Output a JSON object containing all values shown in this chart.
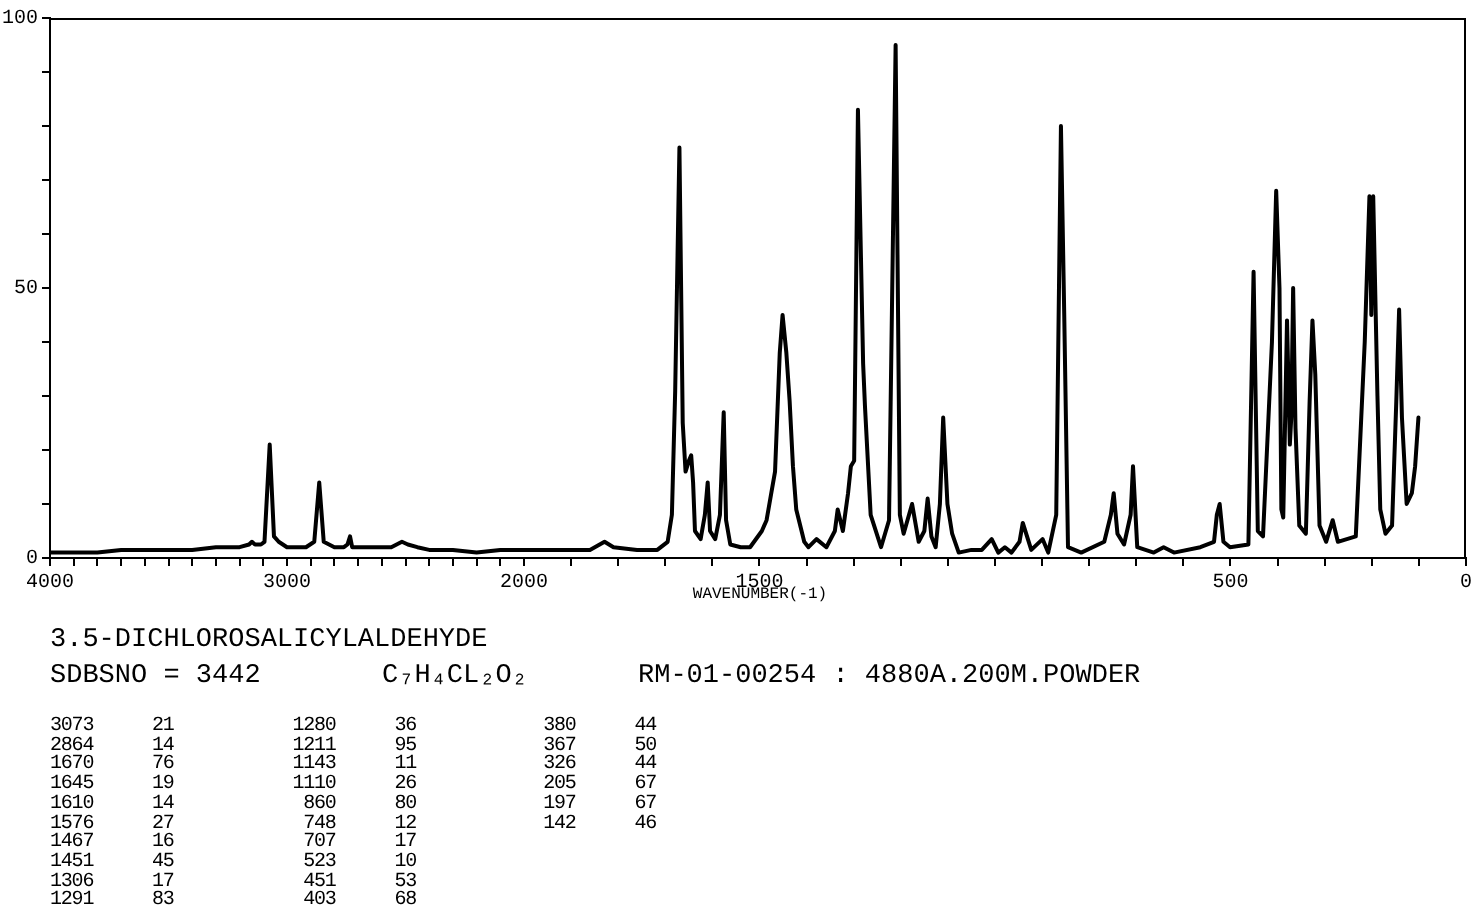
{
  "chart_data": [
    {
      "type": "line",
      "xlim": [
        4000,
        2000
      ],
      "ylim": [
        0,
        100
      ],
      "xticks": [
        4000,
        {
          "value": 3900,
          "label": null
        },
        {
          "value": 3800,
          "label": null
        },
        {
          "value": 3700,
          "label": null
        },
        {
          "value": 3600,
          "label": null
        },
        {
          "value": 3500,
          "label": null
        },
        {
          "value": 3400,
          "label": null
        },
        {
          "value": 3300,
          "label": null
        },
        {
          "value": 3200,
          "label": null
        },
        {
          "value": 3100,
          "label": null
        },
        3000,
        {
          "value": 2900,
          "label": null
        },
        {
          "value": 2800,
          "label": null
        },
        {
          "value": 2700,
          "label": null
        },
        {
          "value": 2600,
          "label": null
        },
        {
          "value": 2500,
          "label": null
        },
        {
          "value": 2400,
          "label": null
        },
        {
          "value": 2300,
          "label": null
        },
        {
          "value": 2200,
          "label": null
        },
        {
          "value": 2100,
          "label": null
        }
      ],
      "yticks": [
        0,
        {
          "value": 10,
          "label": null
        },
        {
          "value": 20,
          "label": null
        },
        {
          "value": 30,
          "label": null
        },
        {
          "value": 40,
          "label": null
        },
        50,
        {
          "value": 60,
          "label": null
        },
        {
          "value": 70,
          "label": null
        },
        {
          "value": 80,
          "label": null
        },
        {
          "value": 90,
          "label": null
        },
        100
      ],
      "color": "#000000",
      "x": [
        4000,
        3900,
        3800,
        3700,
        3600,
        3500,
        3400,
        3300,
        3200,
        3160,
        3148,
        3135,
        3110,
        3095,
        3073,
        3055,
        3035,
        3000,
        2950,
        2920,
        2885,
        2864,
        2845,
        2800,
        2760,
        2745,
        2734,
        2725,
        2680,
        2620,
        2560,
        2515,
        2490,
        2450,
        2400,
        2300,
        2200,
        2100,
        2000
      ],
      "values": [
        1,
        1,
        1,
        1.5,
        1.5,
        1.5,
        1.5,
        2,
        2,
        2.5,
        3,
        2.5,
        2.5,
        3,
        21,
        4,
        3,
        2,
        2,
        2,
        3,
        14,
        3,
        2,
        2,
        2.5,
        4,
        2,
        2,
        2,
        2,
        3,
        2.5,
        2,
        1.5,
        1.5,
        1,
        1.5,
        1.5
      ]
    },
    {
      "type": "line",
      "xlim": [
        2000,
        0
      ],
      "ylim": [
        0,
        100
      ],
      "tick_labels": "x",
      "xlabel": "WAVENUMBER(-1)",
      "xticks": [
        2000,
        {
          "value": 1900,
          "label": null
        },
        {
          "value": 1800,
          "label": null
        },
        {
          "value": 1700,
          "label": null
        },
        {
          "value": 1600,
          "label": null
        },
        1500,
        {
          "value": 1400,
          "label": null
        },
        {
          "value": 1300,
          "label": null
        },
        {
          "value": 1200,
          "label": null
        },
        {
          "value": 1100,
          "label": null
        },
        {
          "value": 1000,
          "label": null
        },
        {
          "value": 900,
          "label": null
        },
        {
          "value": 800,
          "label": null
        },
        {
          "value": 700,
          "label": null
        },
        {
          "value": 600,
          "label": null
        },
        500,
        {
          "value": 400,
          "label": null
        },
        {
          "value": 300,
          "label": null
        },
        {
          "value": 200,
          "label": null
        },
        {
          "value": 100,
          "label": null
        },
        0
      ],
      "color": "#000000",
      "x": [
        2000,
        1950,
        1900,
        1860,
        1829,
        1810,
        1760,
        1717,
        1695,
        1686,
        1679,
        1670,
        1663,
        1657,
        1650,
        1645,
        1641,
        1637,
        1625,
        1616,
        1610,
        1605,
        1594,
        1584,
        1576,
        1571,
        1562,
        1540,
        1520,
        1495,
        1485,
        1475,
        1467,
        1457,
        1451,
        1443,
        1436,
        1429,
        1422,
        1405,
        1396,
        1379,
        1358,
        1340,
        1334,
        1323,
        1312,
        1306,
        1299,
        1291,
        1280,
        1276,
        1264,
        1242,
        1225,
        1211,
        1202,
        1194,
        1176,
        1162,
        1150,
        1143,
        1135,
        1126,
        1117,
        1110,
        1101,
        1091,
        1077,
        1050,
        1028,
        1007,
        993,
        979,
        965,
        948,
        941,
        923,
        899,
        887,
        870,
        860,
        853,
        845,
        817,
        768,
        754,
        748,
        740,
        726,
        712,
        707,
        698,
        663,
        642,
        620,
        564,
        535,
        529,
        523,
        515,
        501,
        462,
        451,
        442,
        431,
        412,
        403,
        396,
        392,
        388,
        380,
        374,
        371,
        367,
        362,
        354,
        340,
        332,
        326,
        320,
        311,
        297,
        283,
        272,
        234,
        215,
        205,
        201,
        197,
        188,
        182,
        171,
        157,
        148,
        142,
        136,
        126,
        115,
        108,
        101
      ],
      "values": [
        1.5,
        1.5,
        1.5,
        1.5,
        3,
        2,
        1.5,
        1.5,
        3,
        8,
        31,
        76,
        25,
        16,
        18,
        19,
        14,
        5,
        3.5,
        8,
        14,
        5,
        3.5,
        8,
        27,
        7,
        2.5,
        2,
        2,
        5,
        7,
        12,
        16,
        38,
        45,
        38,
        29,
        17,
        9,
        3,
        2,
        3.5,
        2,
        5,
        9,
        5,
        12,
        17,
        18,
        83,
        36,
        28,
        8,
        2,
        7,
        95,
        8,
        4.5,
        10,
        3,
        5,
        11,
        4,
        2,
        10,
        26,
        10,
        4.5,
        1,
        1.5,
        1.5,
        3.5,
        1,
        2,
        1,
        3,
        6.5,
        1.5,
        3.5,
        1,
        8,
        80,
        45,
        2,
        1,
        3,
        8,
        12,
        4.5,
        2.5,
        8,
        17,
        2,
        1,
        2,
        1,
        2,
        3,
        8,
        10,
        3,
        2,
        2.5,
        53,
        5,
        4,
        40,
        68,
        50,
        9,
        7.5,
        44,
        21,
        26,
        50,
        24,
        6,
        4.5,
        29,
        44,
        34,
        6,
        3,
        7,
        3,
        4,
        40,
        67,
        45,
        67,
        30,
        9,
        4.5,
        6,
        29,
        46,
        26,
        10,
        12,
        17,
        26
      ]
    },
    {
      "type": "other",
      "title": "3.5-DICHLOROSALICYLALDEHYDE",
      "annotations": [
        "SDBSNO = 3442",
        "C₇H₄CL₂O₂",
        "RM-01-00254 : 4880A.200M.POWDER",
        "3073 21",
        "2864 14",
        "1670 76",
        "1645 19",
        "1610 14",
        "1576 27",
        "1467 16",
        "1451 45",
        "1306 17",
        "1291 83",
        "1280 36",
        "1211 95",
        "1143 11",
        "1110 26",
        "860 80",
        "748 12",
        "707 17",
        "523 10",
        "451 53",
        "403 68",
        "380 44",
        "367 50",
        "326 44",
        "205 67",
        "197 67",
        "142 46"
      ]
    }
  ]
}
